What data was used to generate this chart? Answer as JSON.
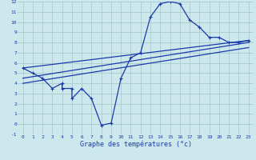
{
  "xlabel": "Graphe des températures (°c)",
  "background_color": "#cce8ec",
  "grid_color": "#aacccc",
  "line_color": "#1a3aaa",
  "xlim": [
    -0.5,
    23.5
  ],
  "ylim": [
    -1,
    12
  ],
  "xticks": [
    0,
    1,
    2,
    3,
    4,
    5,
    6,
    7,
    8,
    9,
    10,
    11,
    12,
    13,
    14,
    15,
    16,
    17,
    18,
    19,
    20,
    21,
    22,
    23
  ],
  "yticks": [
    -1,
    0,
    1,
    2,
    3,
    4,
    5,
    6,
    7,
    8,
    9,
    10,
    11,
    12
  ],
  "series": [
    [
      0,
      5.5
    ],
    [
      1,
      5.0
    ],
    [
      2,
      4.5
    ],
    [
      3,
      3.5
    ],
    [
      4,
      4.0
    ],
    [
      4,
      3.5
    ],
    [
      5,
      3.5
    ],
    [
      5,
      2.5
    ],
    [
      6,
      3.5
    ],
    [
      7,
      2.5
    ],
    [
      8,
      -0.1
    ],
    [
      9,
      0.1
    ],
    [
      10,
      4.5
    ],
    [
      11,
      6.5
    ],
    [
      12,
      7.0
    ],
    [
      13,
      10.5
    ],
    [
      14,
      11.8
    ],
    [
      15,
      12.0
    ],
    [
      16,
      11.8
    ],
    [
      17,
      10.2
    ],
    [
      18,
      9.5
    ],
    [
      19,
      8.5
    ],
    [
      20,
      8.5
    ],
    [
      21,
      8.0
    ],
    [
      22,
      8.0
    ],
    [
      23,
      8.2
    ]
  ],
  "line2": [
    [
      0,
      5.5
    ],
    [
      23,
      8.2
    ]
  ],
  "line3": [
    [
      0,
      4.5
    ],
    [
      23,
      8.0
    ]
  ],
  "line4": [
    [
      0,
      4.0
    ],
    [
      23,
      7.5
    ]
  ]
}
